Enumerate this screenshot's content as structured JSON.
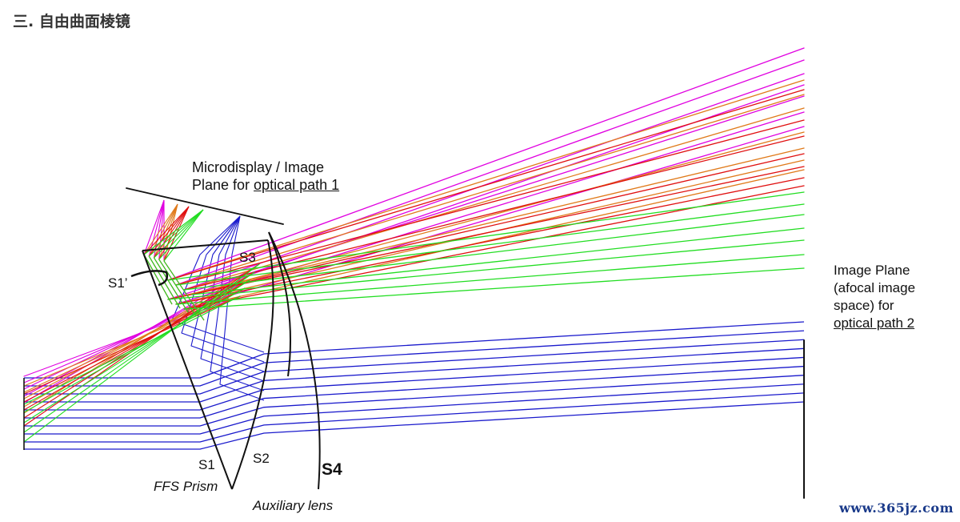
{
  "heading": "三. 自由曲面棱镜",
  "labels": {
    "microdisplay_line1": "Microdisplay / Image",
    "microdisplay_line2_prefix": "Plane for ",
    "microdisplay_line2_link": "optical path 1",
    "s3": "S3",
    "s1_prime": "S1’",
    "s1": "S1",
    "s2": "S2",
    "s4": "S4",
    "ffs_prism": "FFS Prism",
    "auxiliary_lens": "Auxiliary lens",
    "image_plane_line1": "Image Plane",
    "image_plane_line2": "(afocal image",
    "image_plane_line3": "space) for",
    "image_plane_line4": "optical path 2"
  },
  "watermark": "www.365jz.com",
  "colors": {
    "magenta": "#e000e0",
    "orange": "#e07a1a",
    "red": "#e01010",
    "green": "#22dd22",
    "blue": "#1a1acc",
    "outline": "#111111"
  }
}
